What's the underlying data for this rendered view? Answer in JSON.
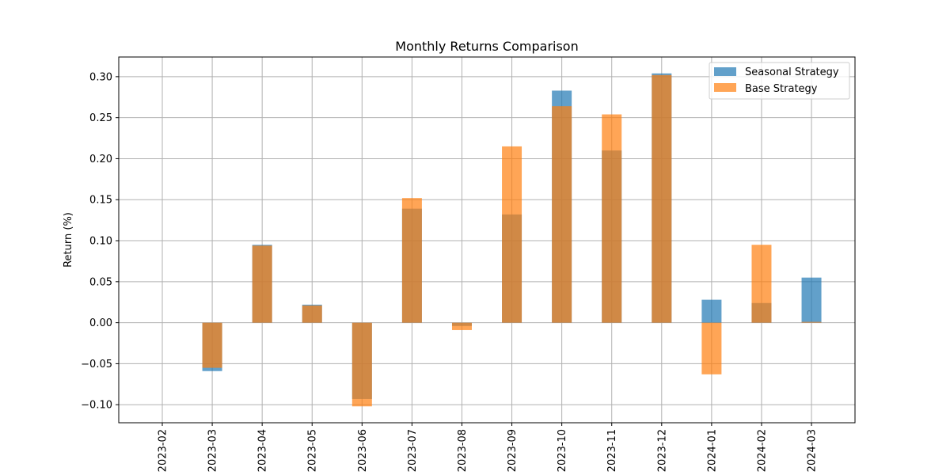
{
  "chart_data": {
    "type": "bar",
    "title": "Monthly Returns Comparison",
    "xlabel": "",
    "ylabel": "Return (%)",
    "categories": [
      "2023-02",
      "2023-03",
      "2023-04",
      "2023-05",
      "2023-06",
      "2023-07",
      "2023-08",
      "2023-09",
      "2023-10",
      "2023-11",
      "2023-12",
      "2024-01",
      "2024-02",
      "2024-03"
    ],
    "series": [
      {
        "name": "Seasonal Strategy",
        "color": "#1f77b4",
        "opacity": 0.7,
        "values": [
          0,
          -0.059,
          0.095,
          0.022,
          -0.093,
          0.139,
          -0.004,
          0.132,
          0.283,
          0.21,
          0.304,
          0.028,
          0.024,
          0.055
        ]
      },
      {
        "name": "Base Strategy",
        "color": "#ff7f0e",
        "opacity": 0.7,
        "values": [
          0,
          -0.055,
          0.094,
          0.021,
          -0.102,
          0.152,
          -0.009,
          0.215,
          0.264,
          0.254,
          0.302,
          -0.063,
          0.095,
          0.001
        ]
      }
    ],
    "yticks": [
      "−0.10",
      "−0.05",
      "0.00",
      "0.05",
      "0.10",
      "0.15",
      "0.20",
      "0.25",
      "0.30"
    ],
    "ytick_values": [
      -0.1,
      -0.05,
      0.0,
      0.05,
      0.1,
      0.15,
      0.2,
      0.25,
      0.3
    ],
    "ylim": [
      -0.122,
      0.324
    ],
    "grid": true,
    "legend_position": "top-right"
  }
}
